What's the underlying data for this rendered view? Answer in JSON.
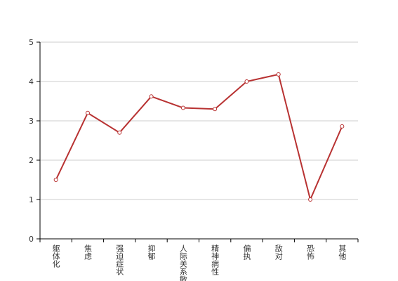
{
  "chart_data": {
    "type": "line",
    "categories": [
      "躯体化",
      "焦虑",
      "强迫症状",
      "抑郁",
      "人际关系敏感",
      "精神病性",
      "偏执",
      "敌对",
      "恐怖",
      "其他"
    ],
    "values": [
      1.5,
      3.2,
      2.7,
      3.62,
      3.33,
      3.3,
      4.0,
      4.18,
      1.0,
      2.86
    ],
    "color": "#b83232",
    "ylim": [
      0,
      5
    ],
    "yticks": [
      0,
      1,
      2,
      3,
      4,
      5
    ],
    "grid": true
  }
}
